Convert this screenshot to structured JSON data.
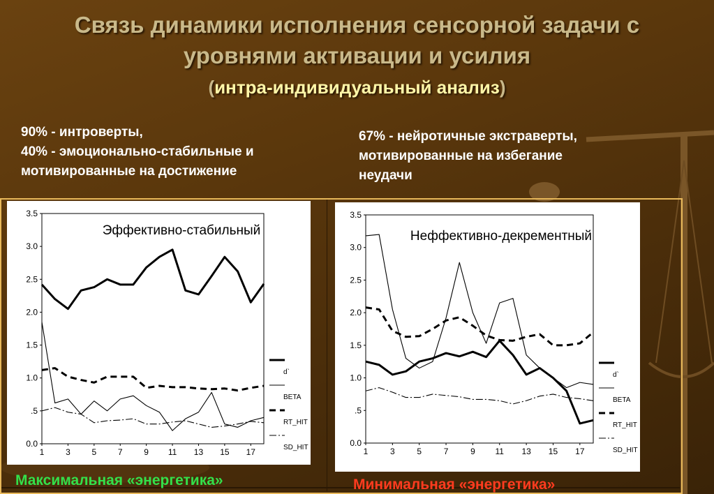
{
  "title_line1": "Связь динамики исполнения сенсорной задачи с",
  "title_line2": "уровнями активации и усилия",
  "subtitle_paren_open": "(",
  "subtitle_inner": "интра-индивидуальный анализ",
  "subtitle_paren_close": ")",
  "left_note": [
    "90% - интроверты,",
    "40% - эмоционально-стабильные и",
    "мотивированные на достижение"
  ],
  "right_note": [
    "67% - нейротичные экстраверты,",
    "мотивированные на избегание",
    "неудачи"
  ],
  "left_footer": "Максимальная «энергетика»",
  "right_footer": "Минимальная «энергетика»",
  "colors": {
    "left_footer": "#33e04a",
    "right_footer": "#ff3b1f",
    "frame": "#e8b85a"
  },
  "chart_data": [
    {
      "type": "line",
      "title": "Эффективно-стабильный",
      "xlabel": "",
      "ylabel": "",
      "x": [
        1,
        2,
        3,
        4,
        5,
        6,
        7,
        8,
        9,
        10,
        11,
        12,
        13,
        14,
        15,
        16,
        17,
        18
      ],
      "xticks": [
        "1",
        "3",
        "5",
        "7",
        "9",
        "11",
        "13",
        "15",
        "17"
      ],
      "xtick_values": [
        1,
        3,
        5,
        7,
        9,
        11,
        13,
        15,
        17
      ],
      "yticks": [
        "0.0",
        ".5",
        "1.0",
        "1.5",
        "2.0",
        "2.5",
        "3.0",
        "3.5"
      ],
      "ytick_values": [
        0,
        0.5,
        1,
        1.5,
        2,
        2.5,
        3,
        3.5
      ],
      "xlim": [
        1,
        18
      ],
      "ylim": [
        0,
        3.5
      ],
      "legend_position": "right",
      "series": [
        {
          "name": "d`",
          "style": "thick",
          "values": [
            2.42,
            2.2,
            2.05,
            2.33,
            2.38,
            2.5,
            2.42,
            2.42,
            2.68,
            2.84,
            2.95,
            2.33,
            2.27,
            2.55,
            2.84,
            2.62,
            2.15,
            2.43
          ]
        },
        {
          "name": "BETA",
          "style": "thin",
          "values": [
            1.85,
            0.62,
            0.68,
            0.45,
            0.65,
            0.5,
            0.68,
            0.73,
            0.58,
            0.48,
            0.2,
            0.38,
            0.48,
            0.78,
            0.3,
            0.25,
            0.35,
            0.4
          ]
        },
        {
          "name": "RT_HIT",
          "style": "dashed",
          "values": [
            1.12,
            1.15,
            1.02,
            0.97,
            0.93,
            1.02,
            1.02,
            1.02,
            0.85,
            0.88,
            0.86,
            0.86,
            0.84,
            0.83,
            0.84,
            0.81,
            0.85,
            0.88
          ]
        },
        {
          "name": "SD_HIT",
          "style": "dashdot",
          "values": [
            0.5,
            0.55,
            0.48,
            0.45,
            0.32,
            0.35,
            0.36,
            0.38,
            0.3,
            0.3,
            0.33,
            0.35,
            0.3,
            0.25,
            0.27,
            0.3,
            0.34,
            0.32
          ]
        }
      ]
    },
    {
      "type": "line",
      "title": "Неффективно-декрементный",
      "xlabel": "",
      "ylabel": "",
      "x": [
        1,
        2,
        3,
        4,
        5,
        6,
        7,
        8,
        9,
        10,
        11,
        12,
        13,
        14,
        15,
        16,
        17,
        18
      ],
      "xticks": [
        "1",
        "3",
        "5",
        "7",
        "9",
        "11",
        "13",
        "15",
        "17"
      ],
      "xtick_values": [
        1,
        3,
        5,
        7,
        9,
        11,
        13,
        15,
        17
      ],
      "yticks": [
        "0.0",
        ".5",
        "1.0",
        "1.5",
        "2.0",
        "2.5",
        "3.0",
        "3.5"
      ],
      "ytick_values": [
        0,
        0.5,
        1,
        1.5,
        2,
        2.5,
        3,
        3.5
      ],
      "xlim": [
        1,
        18
      ],
      "ylim": [
        0,
        3.5
      ],
      "legend_position": "right",
      "series": [
        {
          "name": "d`",
          "style": "thick",
          "values": [
            1.25,
            1.2,
            1.05,
            1.1,
            1.25,
            1.3,
            1.38,
            1.33,
            1.4,
            1.32,
            1.57,
            1.35,
            1.05,
            1.15,
            1.0,
            0.8,
            0.3,
            0.35
          ]
        },
        {
          "name": "BETA",
          "style": "thin",
          "values": [
            3.18,
            3.2,
            2.05,
            1.3,
            1.15,
            1.25,
            1.92,
            2.77,
            2.0,
            1.53,
            2.15,
            2.22,
            1.35,
            1.15,
            1.0,
            0.85,
            0.93,
            0.9
          ]
        },
        {
          "name": "RT_HIT",
          "style": "dashed",
          "values": [
            2.08,
            2.05,
            1.72,
            1.63,
            1.64,
            1.75,
            1.88,
            1.93,
            1.8,
            1.65,
            1.58,
            1.57,
            1.63,
            1.67,
            1.5,
            1.5,
            1.53,
            1.7
          ]
        },
        {
          "name": "SD_HIT",
          "style": "dashdot",
          "values": [
            0.8,
            0.85,
            0.78,
            0.7,
            0.7,
            0.75,
            0.73,
            0.71,
            0.67,
            0.67,
            0.65,
            0.6,
            0.65,
            0.72,
            0.75,
            0.7,
            0.68,
            0.65
          ]
        }
      ]
    }
  ]
}
